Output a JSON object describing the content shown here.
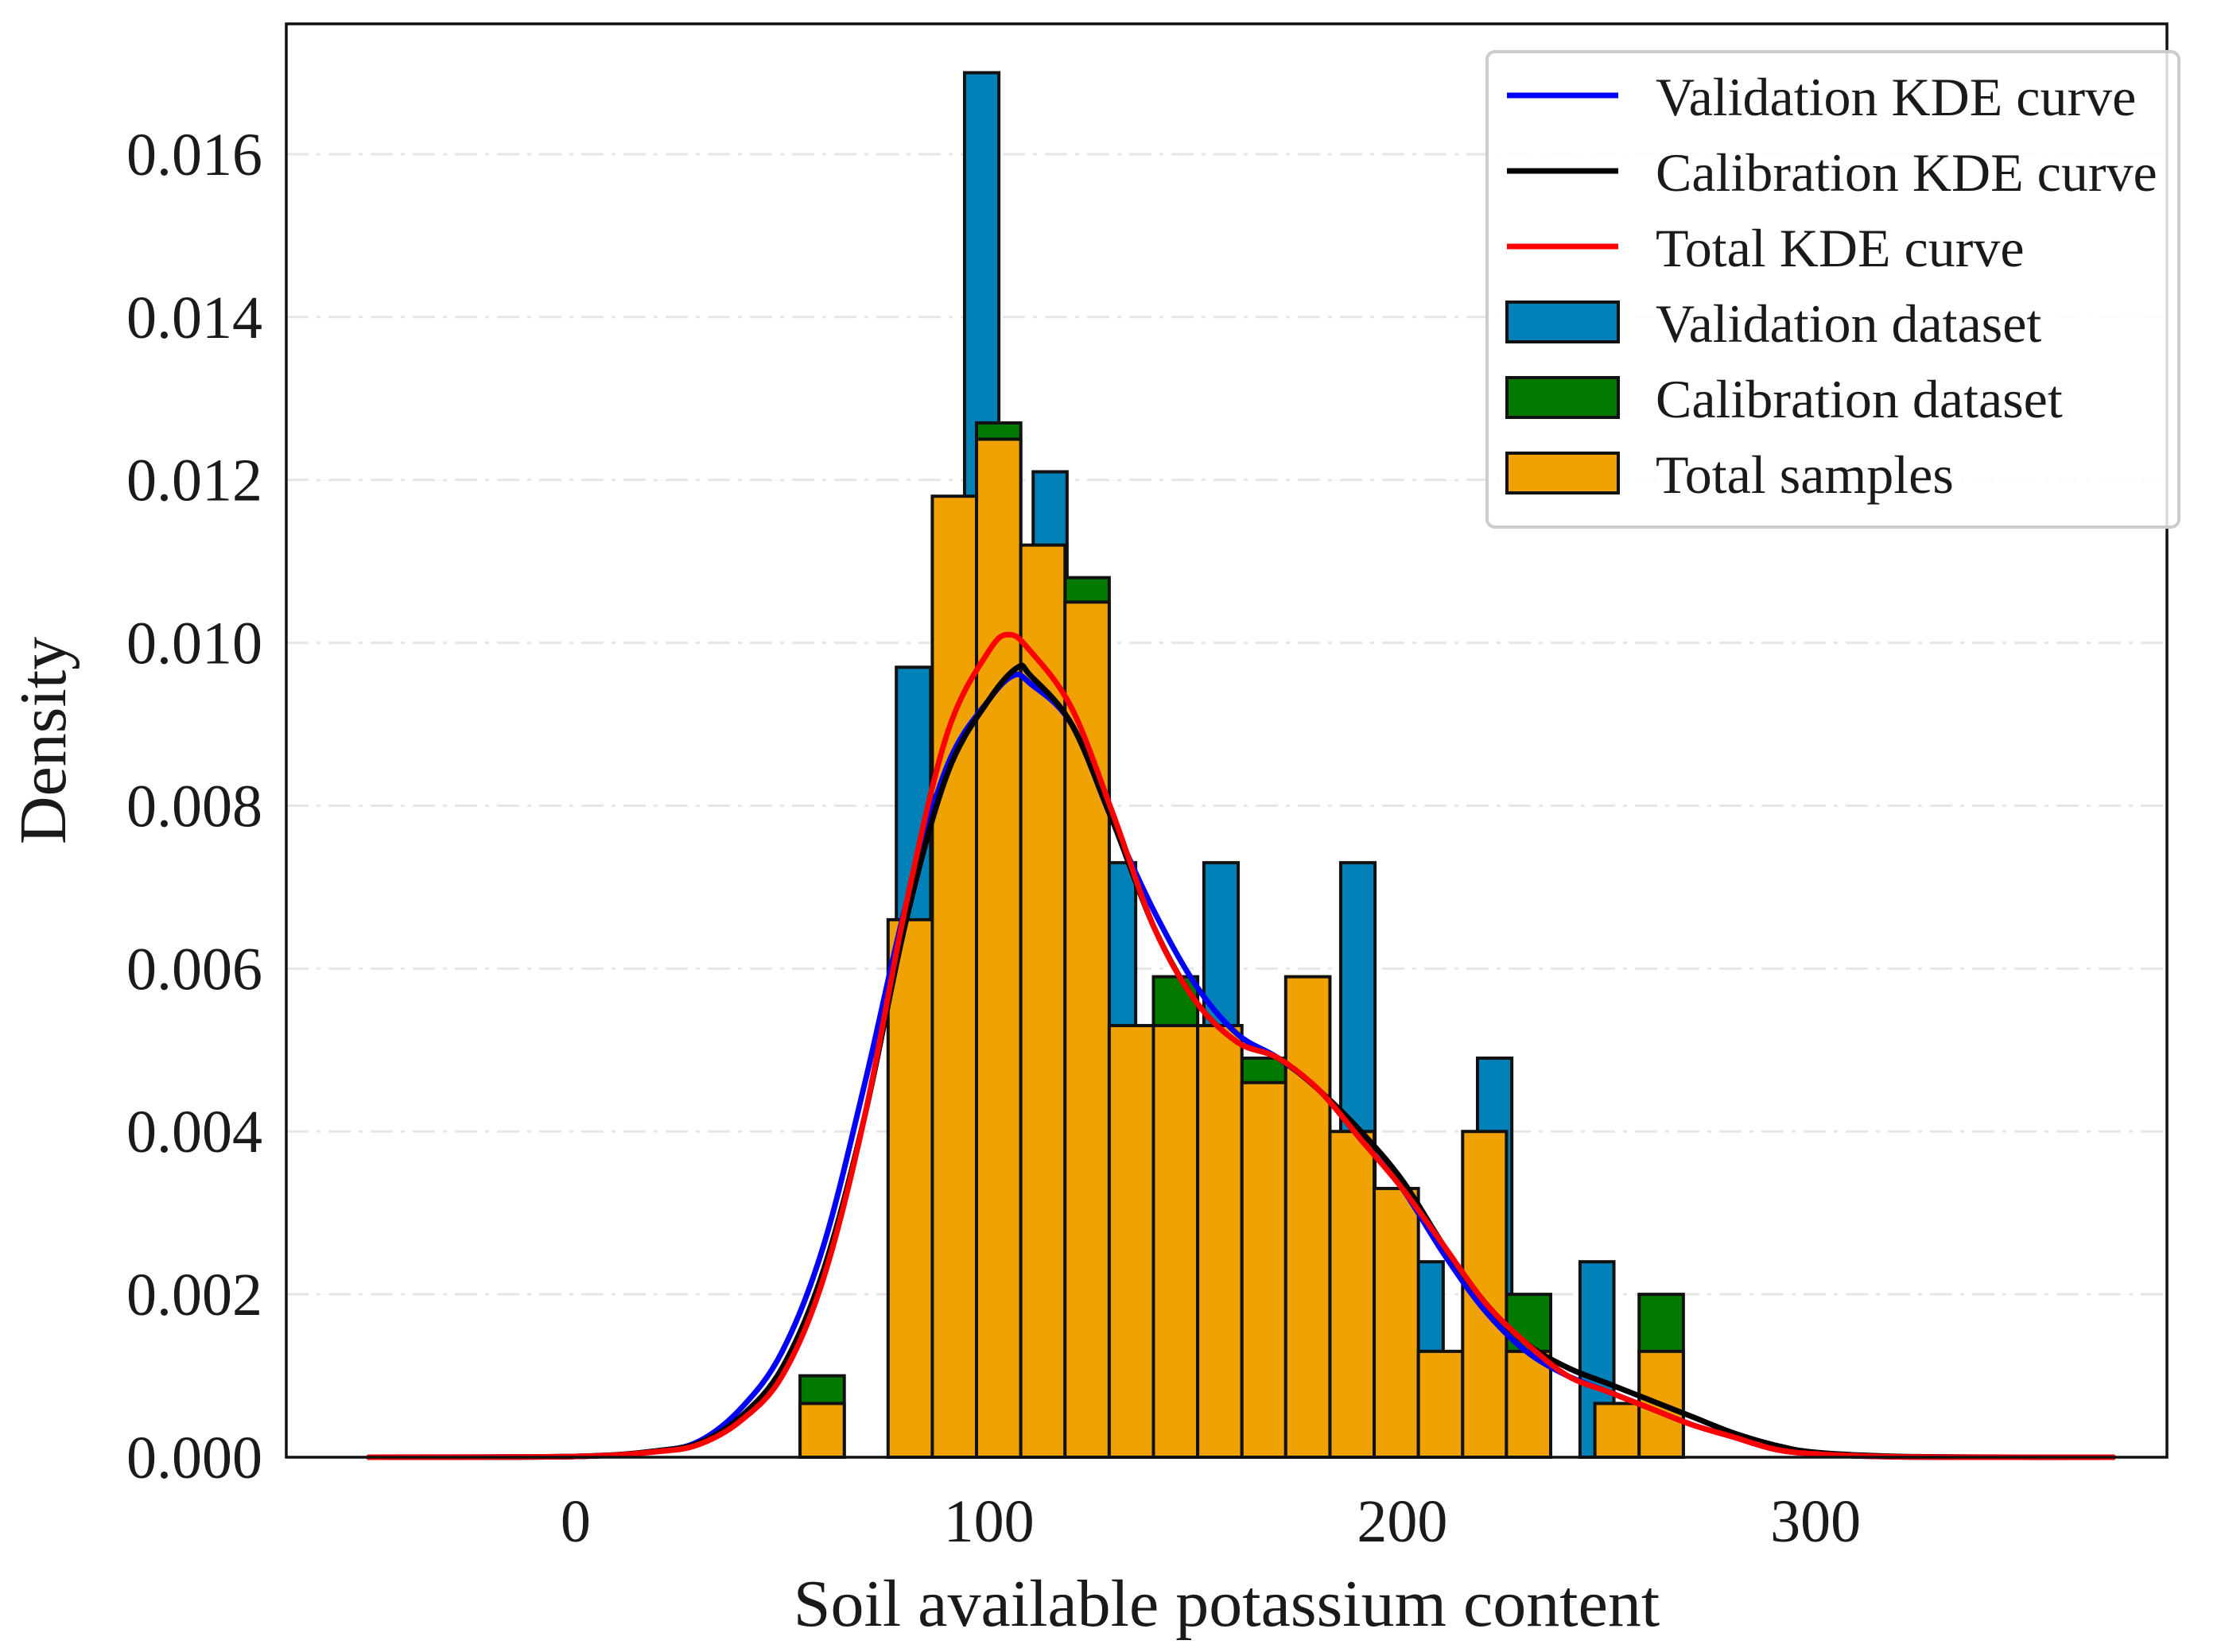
{
  "colors": {
    "validation_bar": "#0280b8",
    "calibration_bar": "#027a02",
    "total_bar": "#f0a202",
    "validation_kde": "#0000ff",
    "calibration_kde": "#000000",
    "total_kde": "#ff0000",
    "grid": "#e6e6e6",
    "bar_edge": "#111111"
  },
  "chart_data": {
    "type": "bar",
    "title": "",
    "xlabel": "Soil available potassium content",
    "ylabel": "Density",
    "xlim": [
      -70,
      385
    ],
    "ylim": [
      0,
      0.0176
    ],
    "xticks": [
      0,
      100,
      200,
      300
    ],
    "xtick_labels": [
      "0",
      "100",
      "200",
      "300"
    ],
    "yticks": [
      0,
      0.002,
      0.004,
      0.006,
      0.008,
      0.01,
      0.012,
      0.014,
      0.016
    ],
    "ytick_labels": [
      "0.000",
      "0.002",
      "0.004",
      "0.006",
      "0.008",
      "0.010",
      "0.012",
      "0.014",
      "0.016"
    ],
    "grid": "horizontal dash-dot",
    "legend_position": "top-right",
    "legend": [
      {
        "label": "Validation KDE curve",
        "kind": "line",
        "color_key": "validation_kde"
      },
      {
        "label": "Calibration KDE curve",
        "kind": "line",
        "color_key": "calibration_kde"
      },
      {
        "label": "Total KDE curve",
        "kind": "line",
        "color_key": "total_kde"
      },
      {
        "label": "Validation dataset",
        "kind": "patch",
        "color_key": "validation_bar"
      },
      {
        "label": "Calibration dataset",
        "kind": "patch",
        "color_key": "calibration_bar"
      },
      {
        "label": "Total samples",
        "kind": "patch",
        "color_key": "total_bar"
      }
    ],
    "histograms": [
      {
        "name": "Validation dataset",
        "color_key": "validation_bar",
        "bins": [
          {
            "x0": 77.6,
            "x1": 85.9,
            "density": 0.0097
          },
          {
            "x0": 94.1,
            "x1": 102.4,
            "density": 0.017
          },
          {
            "x0": 110.7,
            "x1": 118.9,
            "density": 0.0121
          },
          {
            "x0": 127.2,
            "x1": 135.5,
            "density": 0.0073
          },
          {
            "x0": 152.0,
            "x1": 160.3,
            "density": 0.0073
          },
          {
            "x0": 185.1,
            "x1": 193.4,
            "density": 0.0073
          },
          {
            "x0": 201.6,
            "x1": 209.9,
            "density": 0.0024
          },
          {
            "x0": 218.2,
            "x1": 226.5,
            "density": 0.0049
          },
          {
            "x0": 243.0,
            "x1": 251.2,
            "density": 0.0024
          }
        ]
      },
      {
        "name": "Calibration dataset",
        "color_key": "calibration_bar",
        "bins": [
          {
            "x0": 54.3,
            "x1": 65.0,
            "density": 0.001
          },
          {
            "x0": 97.0,
            "x1": 107.7,
            "density": 0.0127
          },
          {
            "x0": 118.4,
            "x1": 129.1,
            "density": 0.0108
          },
          {
            "x0": 139.8,
            "x1": 150.5,
            "density": 0.0059
          },
          {
            "x0": 161.2,
            "x1": 171.8,
            "density": 0.0049
          },
          {
            "x0": 225.2,
            "x1": 235.9,
            "density": 0.002
          },
          {
            "x0": 257.3,
            "x1": 268.0,
            "density": 0.002
          }
        ]
      },
      {
        "name": "Total samples",
        "categories": [
          "54.3–65.0",
          "75.6–86.3",
          "86.3–97.0",
          "97.0–107.7",
          "107.7–118.4",
          "118.4–129.1",
          "129.1–139.8",
          "139.8–150.5",
          "150.5–161.2",
          "161.2–171.8",
          "171.8–182.5",
          "182.5–193.2",
          "193.2–203.9",
          "203.9–214.6",
          "214.6–225.2",
          "225.2–235.9",
          "246.6–257.3",
          "257.3–268.0"
        ],
        "color_key": "total_bar",
        "bins": [
          {
            "x0": 54.3,
            "x1": 65.0,
            "density": 0.00066
          },
          {
            "x0": 75.6,
            "x1": 86.3,
            "density": 0.0066
          },
          {
            "x0": 86.3,
            "x1": 97.0,
            "density": 0.0118
          },
          {
            "x0": 97.0,
            "x1": 107.7,
            "density": 0.0125
          },
          {
            "x0": 107.7,
            "x1": 118.4,
            "density": 0.0112
          },
          {
            "x0": 118.4,
            "x1": 129.1,
            "density": 0.0105
          },
          {
            "x0": 129.1,
            "x1": 139.8,
            "density": 0.0053
          },
          {
            "x0": 139.8,
            "x1": 150.5,
            "density": 0.0053
          },
          {
            "x0": 150.5,
            "x1": 161.2,
            "density": 0.0053
          },
          {
            "x0": 161.2,
            "x1": 171.8,
            "density": 0.0046
          },
          {
            "x0": 171.8,
            "x1": 182.5,
            "density": 0.0059
          },
          {
            "x0": 182.5,
            "x1": 193.2,
            "density": 0.004
          },
          {
            "x0": 193.2,
            "x1": 203.9,
            "density": 0.0033
          },
          {
            "x0": 203.9,
            "x1": 214.6,
            "density": 0.0013
          },
          {
            "x0": 214.6,
            "x1": 225.2,
            "density": 0.004
          },
          {
            "x0": 225.2,
            "x1": 235.9,
            "density": 0.0013
          },
          {
            "x0": 246.6,
            "x1": 257.3,
            "density": 0.00066
          },
          {
            "x0": 257.3,
            "x1": 268.0,
            "density": 0.0013
          }
        ]
      }
    ],
    "series": [
      {
        "name": "Validation KDE curve",
        "color_key": "validation_kde",
        "x": [
          -50,
          0,
          20,
          30,
          40,
          50,
          60,
          70,
          80,
          90,
          100,
          106,
          110,
          120,
          130,
          140,
          150,
          160,
          170,
          180,
          190,
          200,
          210,
          220,
          230,
          240,
          250,
          260,
          270,
          280,
          290,
          300,
          320,
          350,
          372
        ],
        "y": [
          0,
          1e-05,
          8e-05,
          0.0002,
          0.0006,
          0.0013,
          0.0026,
          0.0046,
          0.0068,
          0.0085,
          0.0093,
          0.0096,
          0.0095,
          0.009,
          0.0078,
          0.0067,
          0.0058,
          0.0052,
          0.0049,
          0.0045,
          0.0039,
          0.0033,
          0.0025,
          0.0018,
          0.0013,
          0.001,
          0.0008,
          0.0006,
          0.0004,
          0.00025,
          0.0001,
          4e-05,
          5e-06,
          0,
          0
        ]
      },
      {
        "name": "Calibration KDE curve",
        "color_key": "calibration_kde",
        "x": [
          -50,
          0,
          20,
          30,
          40,
          50,
          60,
          70,
          80,
          90,
          100,
          107,
          110,
          120,
          130,
          140,
          150,
          160,
          170,
          180,
          190,
          200,
          210,
          220,
          230,
          240,
          250,
          260,
          270,
          280,
          290,
          300,
          320,
          350,
          372
        ],
        "y": [
          0,
          1e-05,
          8e-05,
          0.00018,
          0.0005,
          0.0011,
          0.0023,
          0.0042,
          0.0066,
          0.0084,
          0.0093,
          0.0097,
          0.0096,
          0.009,
          0.0078,
          0.0065,
          0.0056,
          0.0051,
          0.0049,
          0.0045,
          0.004,
          0.0034,
          0.0026,
          0.0019,
          0.0014,
          0.0011,
          0.0009,
          0.0007,
          0.0005,
          0.0003,
          0.00015,
          6e-05,
          1e-05,
          0,
          0
        ]
      },
      {
        "name": "Total KDE curve",
        "color_key": "total_kde",
        "x": [
          -50,
          0,
          20,
          30,
          40,
          50,
          60,
          70,
          80,
          90,
          100,
          105,
          110,
          120,
          130,
          140,
          150,
          160,
          170,
          180,
          190,
          200,
          210,
          220,
          230,
          240,
          250,
          260,
          270,
          280,
          290,
          300,
          320,
          350,
          372
        ],
        "y": [
          0,
          1e-05,
          7e-05,
          0.00016,
          0.00045,
          0.001,
          0.0022,
          0.0042,
          0.0068,
          0.0089,
          0.0099,
          0.0101,
          0.0099,
          0.0092,
          0.0079,
          0.0065,
          0.0056,
          0.0051,
          0.0049,
          0.0045,
          0.0039,
          0.0033,
          0.0026,
          0.0019,
          0.0014,
          0.001,
          0.0008,
          0.0006,
          0.0004,
          0.00025,
          0.0001,
          4e-05,
          5e-06,
          0,
          0
        ]
      }
    ]
  }
}
